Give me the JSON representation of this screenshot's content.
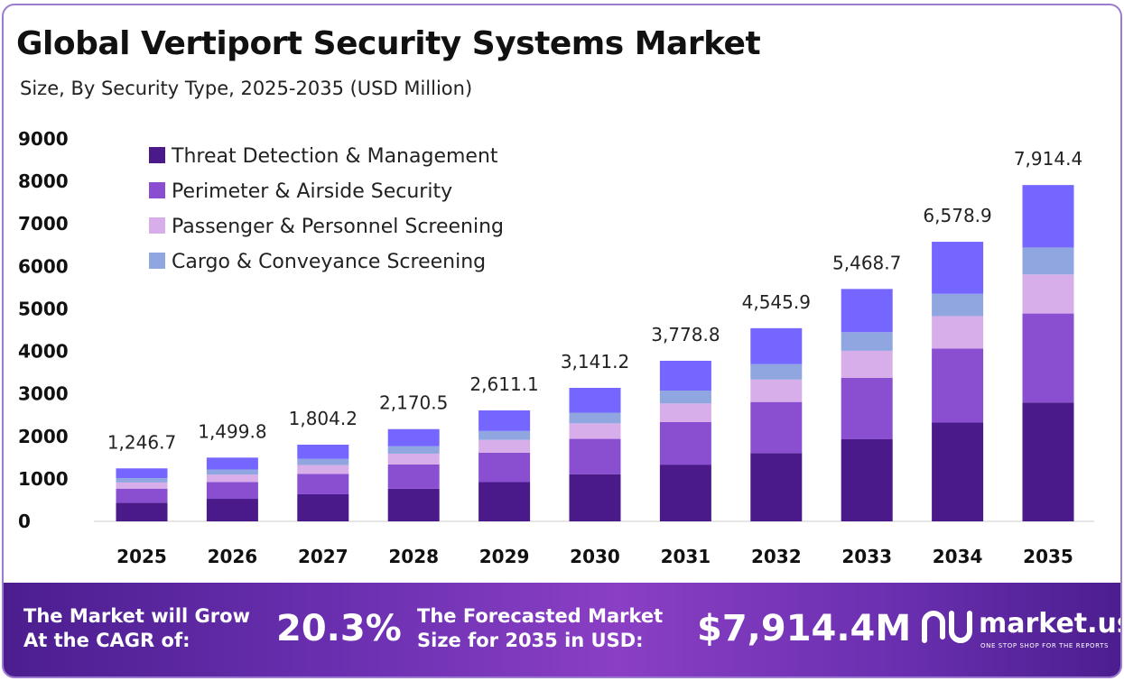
{
  "header": {
    "title": "Global Vertiport Security Systems Market",
    "subtitle": "Size, By Security Type, 2025-2035 (USD Million)"
  },
  "chart_data": {
    "type": "bar",
    "stacked": true,
    "title": "Global Vertiport Security Systems Market",
    "subtitle": "Size, By Security Type, 2025-2035 (USD Million)",
    "xlabel": "",
    "ylabel": "",
    "ylim": [
      0,
      9000
    ],
    "yticks": [
      0,
      1000,
      2000,
      3000,
      4000,
      5000,
      6000,
      7000,
      8000,
      9000
    ],
    "grid": false,
    "legend_position": "top-left",
    "categories": [
      "2025",
      "2026",
      "2027",
      "2028",
      "2029",
      "2030",
      "2031",
      "2032",
      "2033",
      "2034",
      "2035"
    ],
    "totals": [
      1246.7,
      1499.8,
      1804.2,
      2170.5,
      2611.1,
      3141.2,
      3778.8,
      4545.9,
      5468.7,
      6578.9,
      7914.4
    ],
    "total_labels": [
      "1,246.7",
      "1,499.8",
      "1,804.2",
      "2,170.5",
      "2,611.1",
      "3,141.2",
      "3,778.8",
      "4,545.9",
      "5,468.7",
      "6,578.9",
      "7,914.4"
    ],
    "series": [
      {
        "name": "Threat Detection & Management",
        "color": "#4a1a8a",
        "values": [
          440,
          530,
          638,
          767,
          923,
          1110,
          1335,
          1606,
          1932,
          2325,
          2797
        ]
      },
      {
        "name": "Perimeter & Airside Security",
        "color": "#8a4fd1",
        "values": [
          330,
          397,
          477,
          574,
          691,
          831,
          1000,
          1203,
          1447,
          1741,
          2094
        ]
      },
      {
        "name": "Passenger & Personnel Screening",
        "color": "#d8aeea",
        "values": [
          145,
          174,
          210,
          252,
          303,
          365,
          439,
          528,
          635,
          764,
          919
        ]
      },
      {
        "name": "Cargo & Conveyance Screening",
        "color": "#8fa6e0",
        "values": [
          100,
          120,
          145,
          174,
          209,
          252,
          303,
          364,
          438,
          527,
          634
        ]
      },
      {
        "name": "",
        "color": "#7466ff",
        "values": [
          231.7,
          278.8,
          334.2,
          403.5,
          485.1,
          583.2,
          701.8,
          844.9,
          1016.7,
          1221.9,
          1470.4
        ]
      }
    ]
  },
  "footer": {
    "cagr_label_line1": "The Market will Grow",
    "cagr_label_line2": "At the CAGR of:",
    "cagr_value": "20.3%",
    "forecast_label_line1": "The Forecasted Market",
    "forecast_label_line2": "Size for 2035 in USD:",
    "forecast_value": "$7,914.4M",
    "brand": "market.us",
    "tagline": "ONE STOP SHOP FOR THE REPORTS",
    "logo_icon": "market-us-logo-icon"
  }
}
